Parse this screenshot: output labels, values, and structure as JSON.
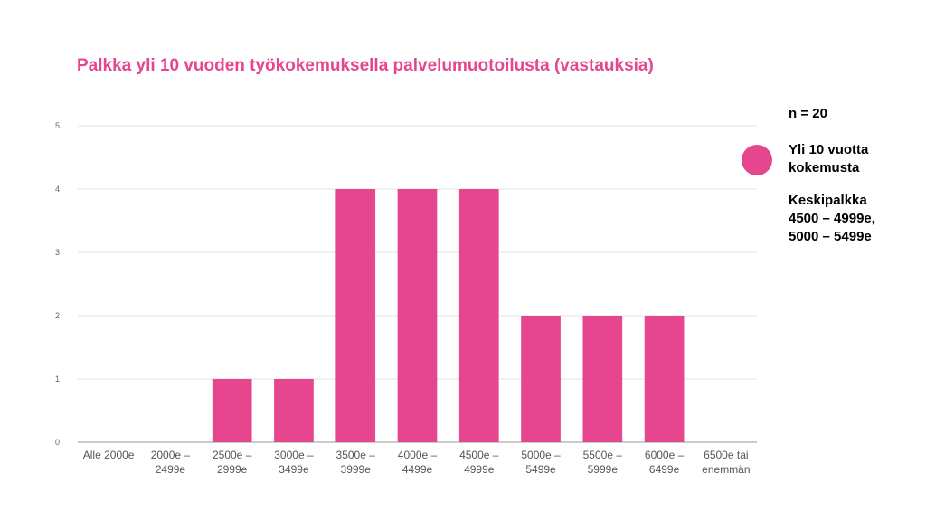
{
  "colors": {
    "bar": "#e5468e",
    "title": "#e5468e",
    "grid": "#e3e3e3",
    "axis": "#999999"
  },
  "side": {
    "n": "n = 20",
    "legend_line1": "Yli 10 vuotta",
    "legend_line2": "kokemusta",
    "avg_line1": "Keskipalkka",
    "avg_line2": "4500 – 4999e,",
    "avg_line3": "5000 – 5499e"
  },
  "chart_data": {
    "type": "bar",
    "title": "Palkka yli 10 vuoden työkokemuksella palvelumuotoilusta (vastauksia)",
    "categories": [
      [
        "Alle 2000e"
      ],
      [
        "2000e –",
        "2499e"
      ],
      [
        "2500e –",
        "2999e"
      ],
      [
        "3000e –",
        "3499e"
      ],
      [
        "3500e –",
        "3999e"
      ],
      [
        "4000e –",
        "4499e"
      ],
      [
        "4500e –",
        "4999e"
      ],
      [
        "5000e –",
        "5499e"
      ],
      [
        "5500e –",
        "5999e"
      ],
      [
        "6000e –",
        "6499e"
      ],
      [
        "6500e tai",
        "enemmän"
      ]
    ],
    "values": [
      0,
      0,
      1,
      1,
      4,
      4,
      4,
      2,
      2,
      2,
      0
    ],
    "ylim": [
      0,
      5
    ],
    "yticks": [
      0,
      1,
      2,
      3,
      4,
      5
    ],
    "grid": true,
    "legend": "right"
  }
}
